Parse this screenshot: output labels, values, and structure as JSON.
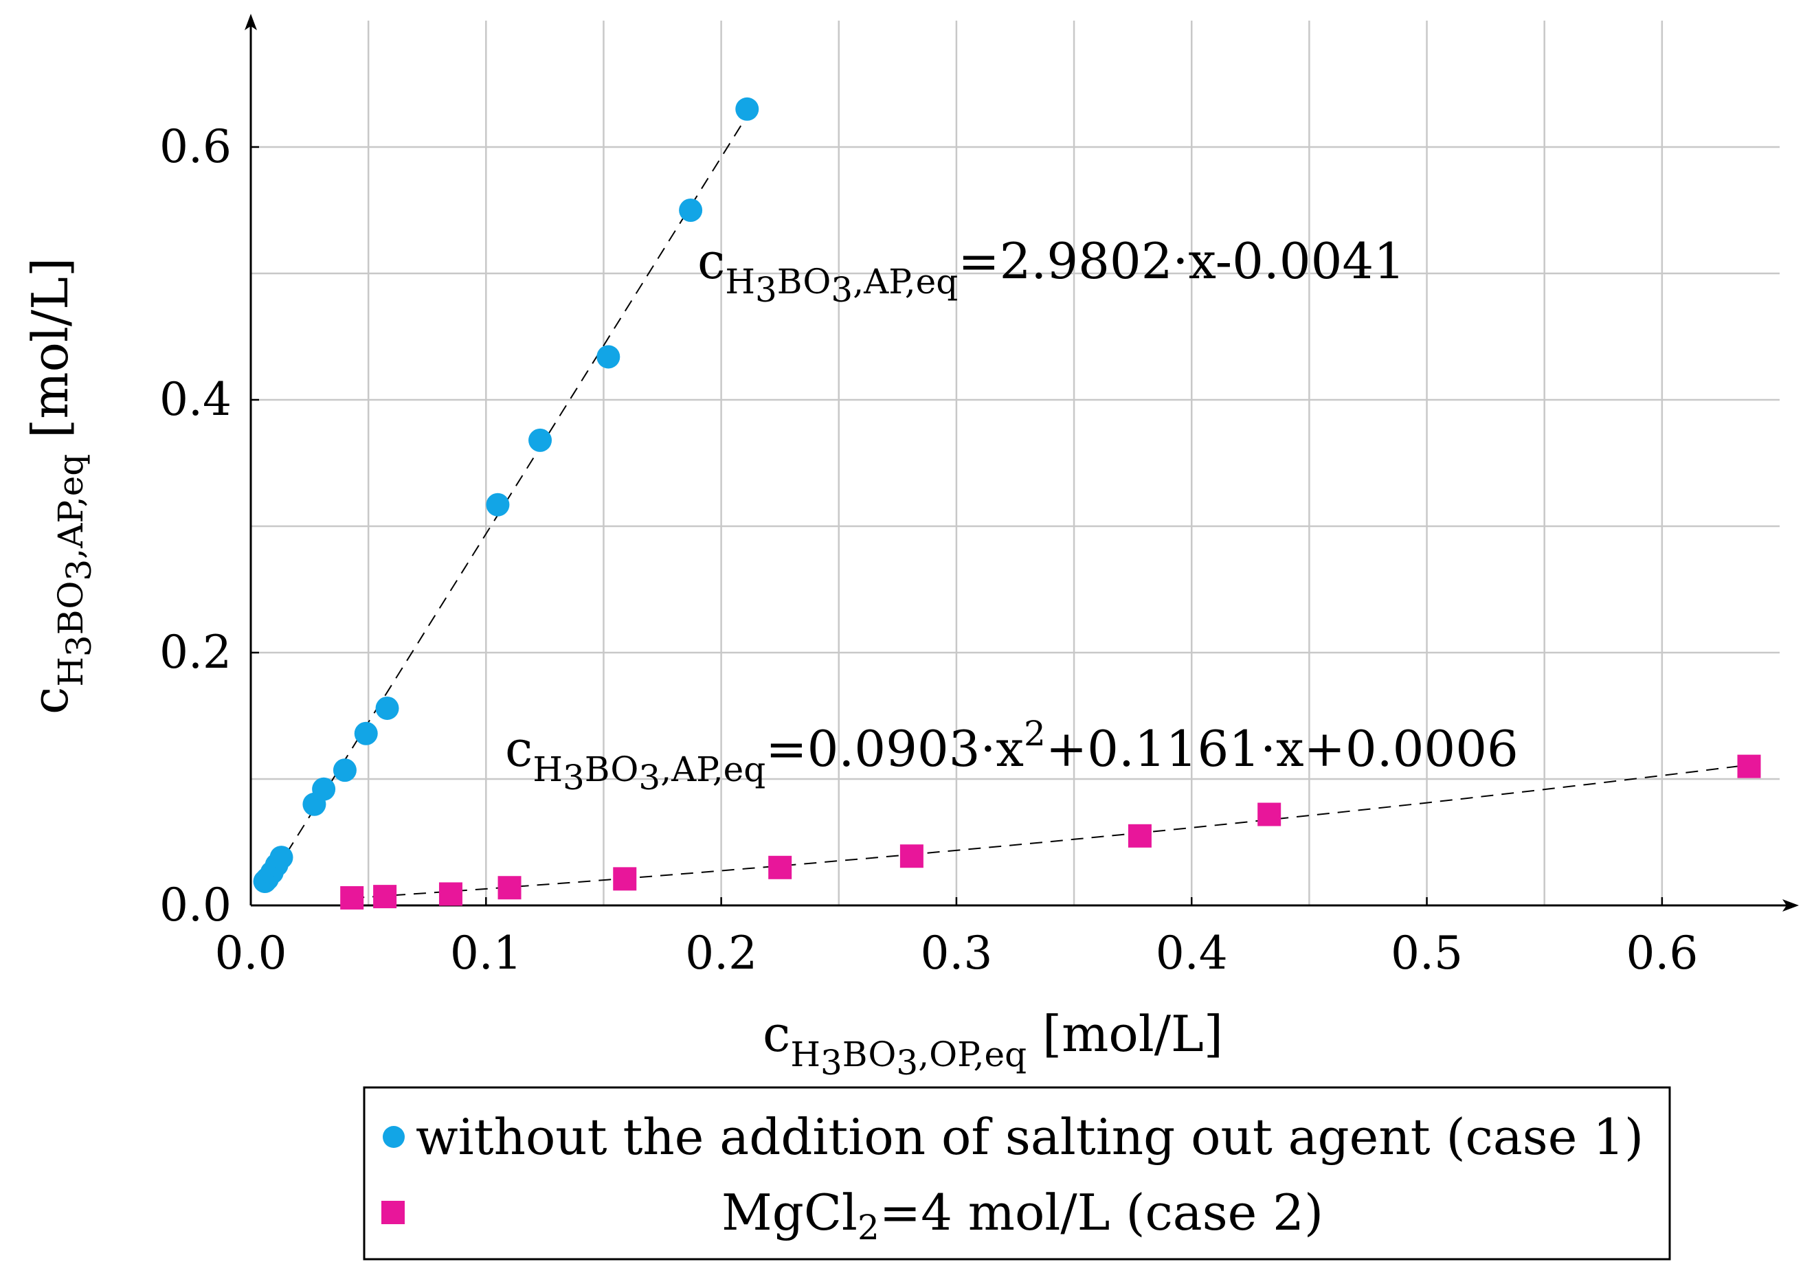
{
  "chart_data": {
    "type": "scatter",
    "xlim": [
      0,
      0.65
    ],
    "ylim": [
      0,
      0.7
    ],
    "x_ticks": [
      0,
      0.1,
      0.2,
      0.3,
      0.4,
      0.5,
      0.6
    ],
    "x_tick_labels": [
      "0.0",
      "0.1",
      "0.2",
      "0.3",
      "0.4",
      "0.5",
      "0.6"
    ],
    "y_ticks": [
      0,
      0.2,
      0.4,
      0.6
    ],
    "y_tick_labels": [
      "0.0",
      "0.2",
      "0.4",
      "0.6"
    ],
    "grid": true,
    "xlabel": {
      "main": "c",
      "sub": "H3BO3,OP,eq",
      "sub_parts": [
        "H",
        "3",
        "BO",
        "3",
        ",OP,eq"
      ],
      "unit": " [mol/L]"
    },
    "ylabel": {
      "main": "c",
      "sub": "H3BO3,AP,eq",
      "sub_parts": [
        "H",
        "3",
        "BO",
        "3",
        ",AP,eq"
      ],
      "unit": " [mol/L]"
    },
    "series": [
      {
        "name": "without the addition of salting out agent (case 1)",
        "marker": "circle",
        "color": "#12a5e6",
        "x": [
          0.006,
          0.007,
          0.009,
          0.011,
          0.013,
          0.027,
          0.031,
          0.04,
          0.049,
          0.058,
          0.105,
          0.123,
          0.152,
          0.187,
          0.211
        ],
        "y": [
          0.019,
          0.021,
          0.026,
          0.032,
          0.038,
          0.08,
          0.092,
          0.107,
          0.136,
          0.156,
          0.317,
          0.368,
          0.434,
          0.55,
          0.63
        ],
        "fit": {
          "kind": "linear",
          "a": 2.9802,
          "b": -0.0041,
          "x_range": [
            0.006,
            0.211
          ],
          "equation": {
            "prefix": "c",
            "sub_parts": [
              "H",
              "3",
              "BO",
              "3",
              ",AP,eq"
            ],
            "rhs": "=2.9802·x-0.0041"
          }
        }
      },
      {
        "name": "MgCl2=4 mol/L (case 2)",
        "name_parts": [
          "MgCl",
          "2",
          "=4 mol/L (case 2)"
        ],
        "marker": "square",
        "color": "#e8169a",
        "x": [
          0.043,
          0.057,
          0.085,
          0.11,
          0.159,
          0.225,
          0.281,
          0.378,
          0.433,
          0.637
        ],
        "y": [
          0.006,
          0.007,
          0.009,
          0.014,
          0.021,
          0.03,
          0.039,
          0.055,
          0.072,
          0.11
        ],
        "fit": {
          "kind": "quadratic",
          "a": 0.0903,
          "b": 0.1161,
          "c": 0.0006,
          "x_range": [
            0.043,
            0.637
          ],
          "equation": {
            "prefix": "c",
            "sub_parts": [
              "H",
              "3",
              "BO",
              "3",
              ",AP,eq"
            ],
            "rhs_parts": [
              "=0.0903·x",
              "2",
              "+0.1161·x+0.0006"
            ]
          }
        }
      }
    ],
    "legend": {
      "placement": "bottom-center, below plot",
      "border": true
    }
  }
}
